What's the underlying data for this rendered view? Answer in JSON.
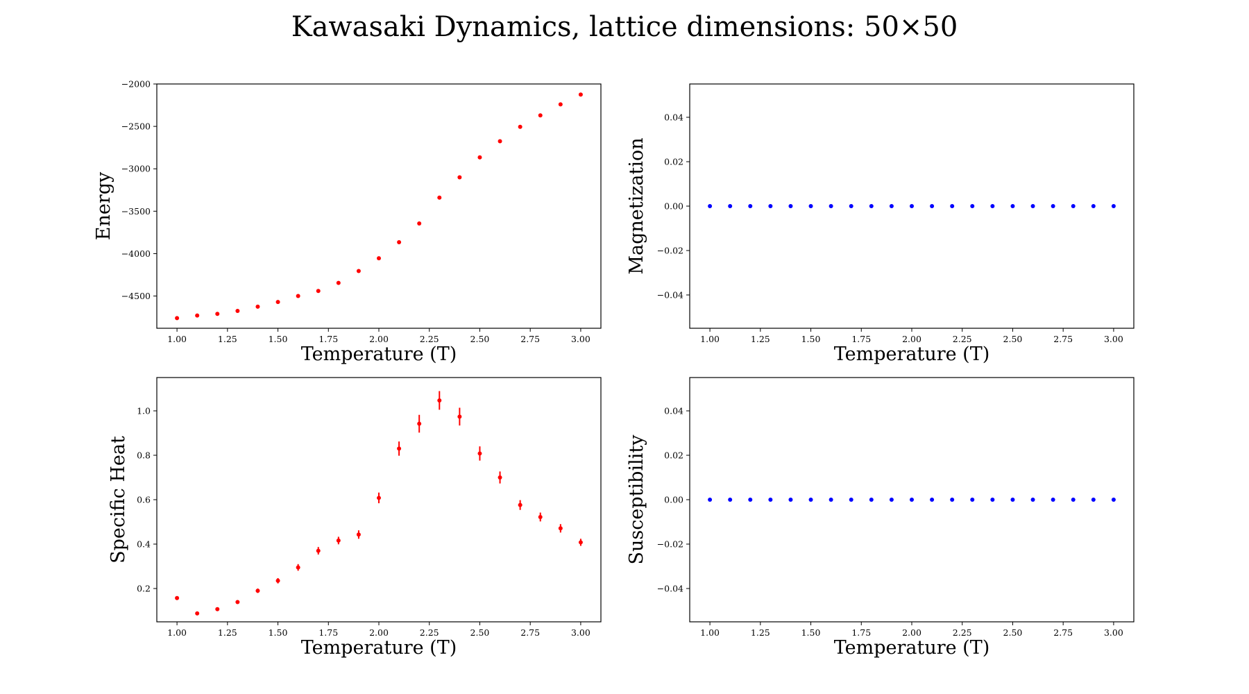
{
  "figure": {
    "title": "Kawasaki Dynamics, lattice dimensions: 50×50"
  },
  "chart_data": [
    {
      "type": "scatter",
      "title": "",
      "xlabel": "Temperature (T)",
      "ylabel": "Energy",
      "color": "#ff0000",
      "x": [
        1.0,
        1.1,
        1.2,
        1.3,
        1.4,
        1.5,
        1.6,
        1.7,
        1.8,
        1.9,
        2.0,
        2.1,
        2.2,
        2.3,
        2.4,
        2.5,
        2.6,
        2.7,
        2.8,
        2.9,
        3.0
      ],
      "y": [
        -4760,
        -4730,
        -4710,
        -4675,
        -4625,
        -4570,
        -4500,
        -4440,
        -4345,
        -4205,
        -4055,
        -3865,
        -3645,
        -3340,
        -3100,
        -2865,
        -2675,
        -2505,
        -2370,
        -2240,
        -2125
      ],
      "xlim": [
        0.9,
        3.1
      ],
      "ylim": [
        -4880,
        -2000
      ],
      "xticks": [
        "1.00",
        "1.25",
        "1.50",
        "1.75",
        "2.00",
        "2.25",
        "2.50",
        "2.75",
        "3.00"
      ],
      "yticks": [
        "−4500",
        "−4000",
        "−3500",
        "−3000",
        "−2500",
        "−2000"
      ],
      "grid": false
    },
    {
      "type": "scatter",
      "title": "",
      "xlabel": "Temperature (T)",
      "ylabel": "Magnetization",
      "color": "#0000ff",
      "x": [
        1.0,
        1.1,
        1.2,
        1.3,
        1.4,
        1.5,
        1.6,
        1.7,
        1.8,
        1.9,
        2.0,
        2.1,
        2.2,
        2.3,
        2.4,
        2.5,
        2.6,
        2.7,
        2.8,
        2.9,
        3.0
      ],
      "y": [
        0,
        0,
        0,
        0,
        0,
        0,
        0,
        0,
        0,
        0,
        0,
        0,
        0,
        0,
        0,
        0,
        0,
        0,
        0,
        0,
        0
      ],
      "xlim": [
        0.9,
        3.1
      ],
      "ylim": [
        -0.055,
        0.055
      ],
      "xticks": [
        "1.00",
        "1.25",
        "1.50",
        "1.75",
        "2.00",
        "2.25",
        "2.50",
        "2.75",
        "3.00"
      ],
      "yticks": [
        "−0.04",
        "−0.02",
        "0.00",
        "0.02",
        "0.04"
      ],
      "grid": false
    },
    {
      "type": "scatter",
      "title": "",
      "xlabel": "Temperature (T)",
      "ylabel": "Specific Heat",
      "color": "#ff0000",
      "x": [
        1.0,
        1.1,
        1.2,
        1.3,
        1.4,
        1.5,
        1.6,
        1.7,
        1.8,
        1.9,
        2.0,
        2.1,
        2.2,
        2.3,
        2.4,
        2.5,
        2.6,
        2.7,
        2.8,
        2.9,
        3.0
      ],
      "y": [
        0.157,
        0.088,
        0.107,
        0.139,
        0.19,
        0.235,
        0.295,
        0.37,
        0.416,
        0.443,
        0.608,
        0.83,
        0.942,
        1.047,
        0.974,
        0.808,
        0.7,
        0.576,
        0.522,
        0.471,
        0.408
      ],
      "yerr": [
        0.005,
        0.005,
        0.007,
        0.008,
        0.01,
        0.012,
        0.015,
        0.017,
        0.017,
        0.019,
        0.024,
        0.032,
        0.04,
        0.042,
        0.04,
        0.032,
        0.027,
        0.022,
        0.02,
        0.019,
        0.016
      ],
      "xlim": [
        0.9,
        3.1
      ],
      "ylim": [
        0.05,
        1.15
      ],
      "xticks": [
        "1.00",
        "1.25",
        "1.50",
        "1.75",
        "2.00",
        "2.25",
        "2.50",
        "2.75",
        "3.00"
      ],
      "yticks": [
        "0.2",
        "0.4",
        "0.6",
        "0.8",
        "1.0"
      ],
      "grid": false
    },
    {
      "type": "scatter",
      "title": "",
      "xlabel": "Temperature (T)",
      "ylabel": "Susceptibility",
      "color": "#0000ff",
      "x": [
        1.0,
        1.1,
        1.2,
        1.3,
        1.4,
        1.5,
        1.6,
        1.7,
        1.8,
        1.9,
        2.0,
        2.1,
        2.2,
        2.3,
        2.4,
        2.5,
        2.6,
        2.7,
        2.8,
        2.9,
        3.0
      ],
      "y": [
        0,
        0,
        0,
        0,
        0,
        0,
        0,
        0,
        0,
        0,
        0,
        0,
        0,
        0,
        0,
        0,
        0,
        0,
        0,
        0,
        0
      ],
      "xlim": [
        0.9,
        3.1
      ],
      "ylim": [
        -0.055,
        0.055
      ],
      "xticks": [
        "1.00",
        "1.25",
        "1.50",
        "1.75",
        "2.00",
        "2.25",
        "2.50",
        "2.75",
        "3.00"
      ],
      "yticks": [
        "−0.04",
        "−0.02",
        "0.00",
        "0.02",
        "0.04"
      ],
      "grid": false
    }
  ]
}
